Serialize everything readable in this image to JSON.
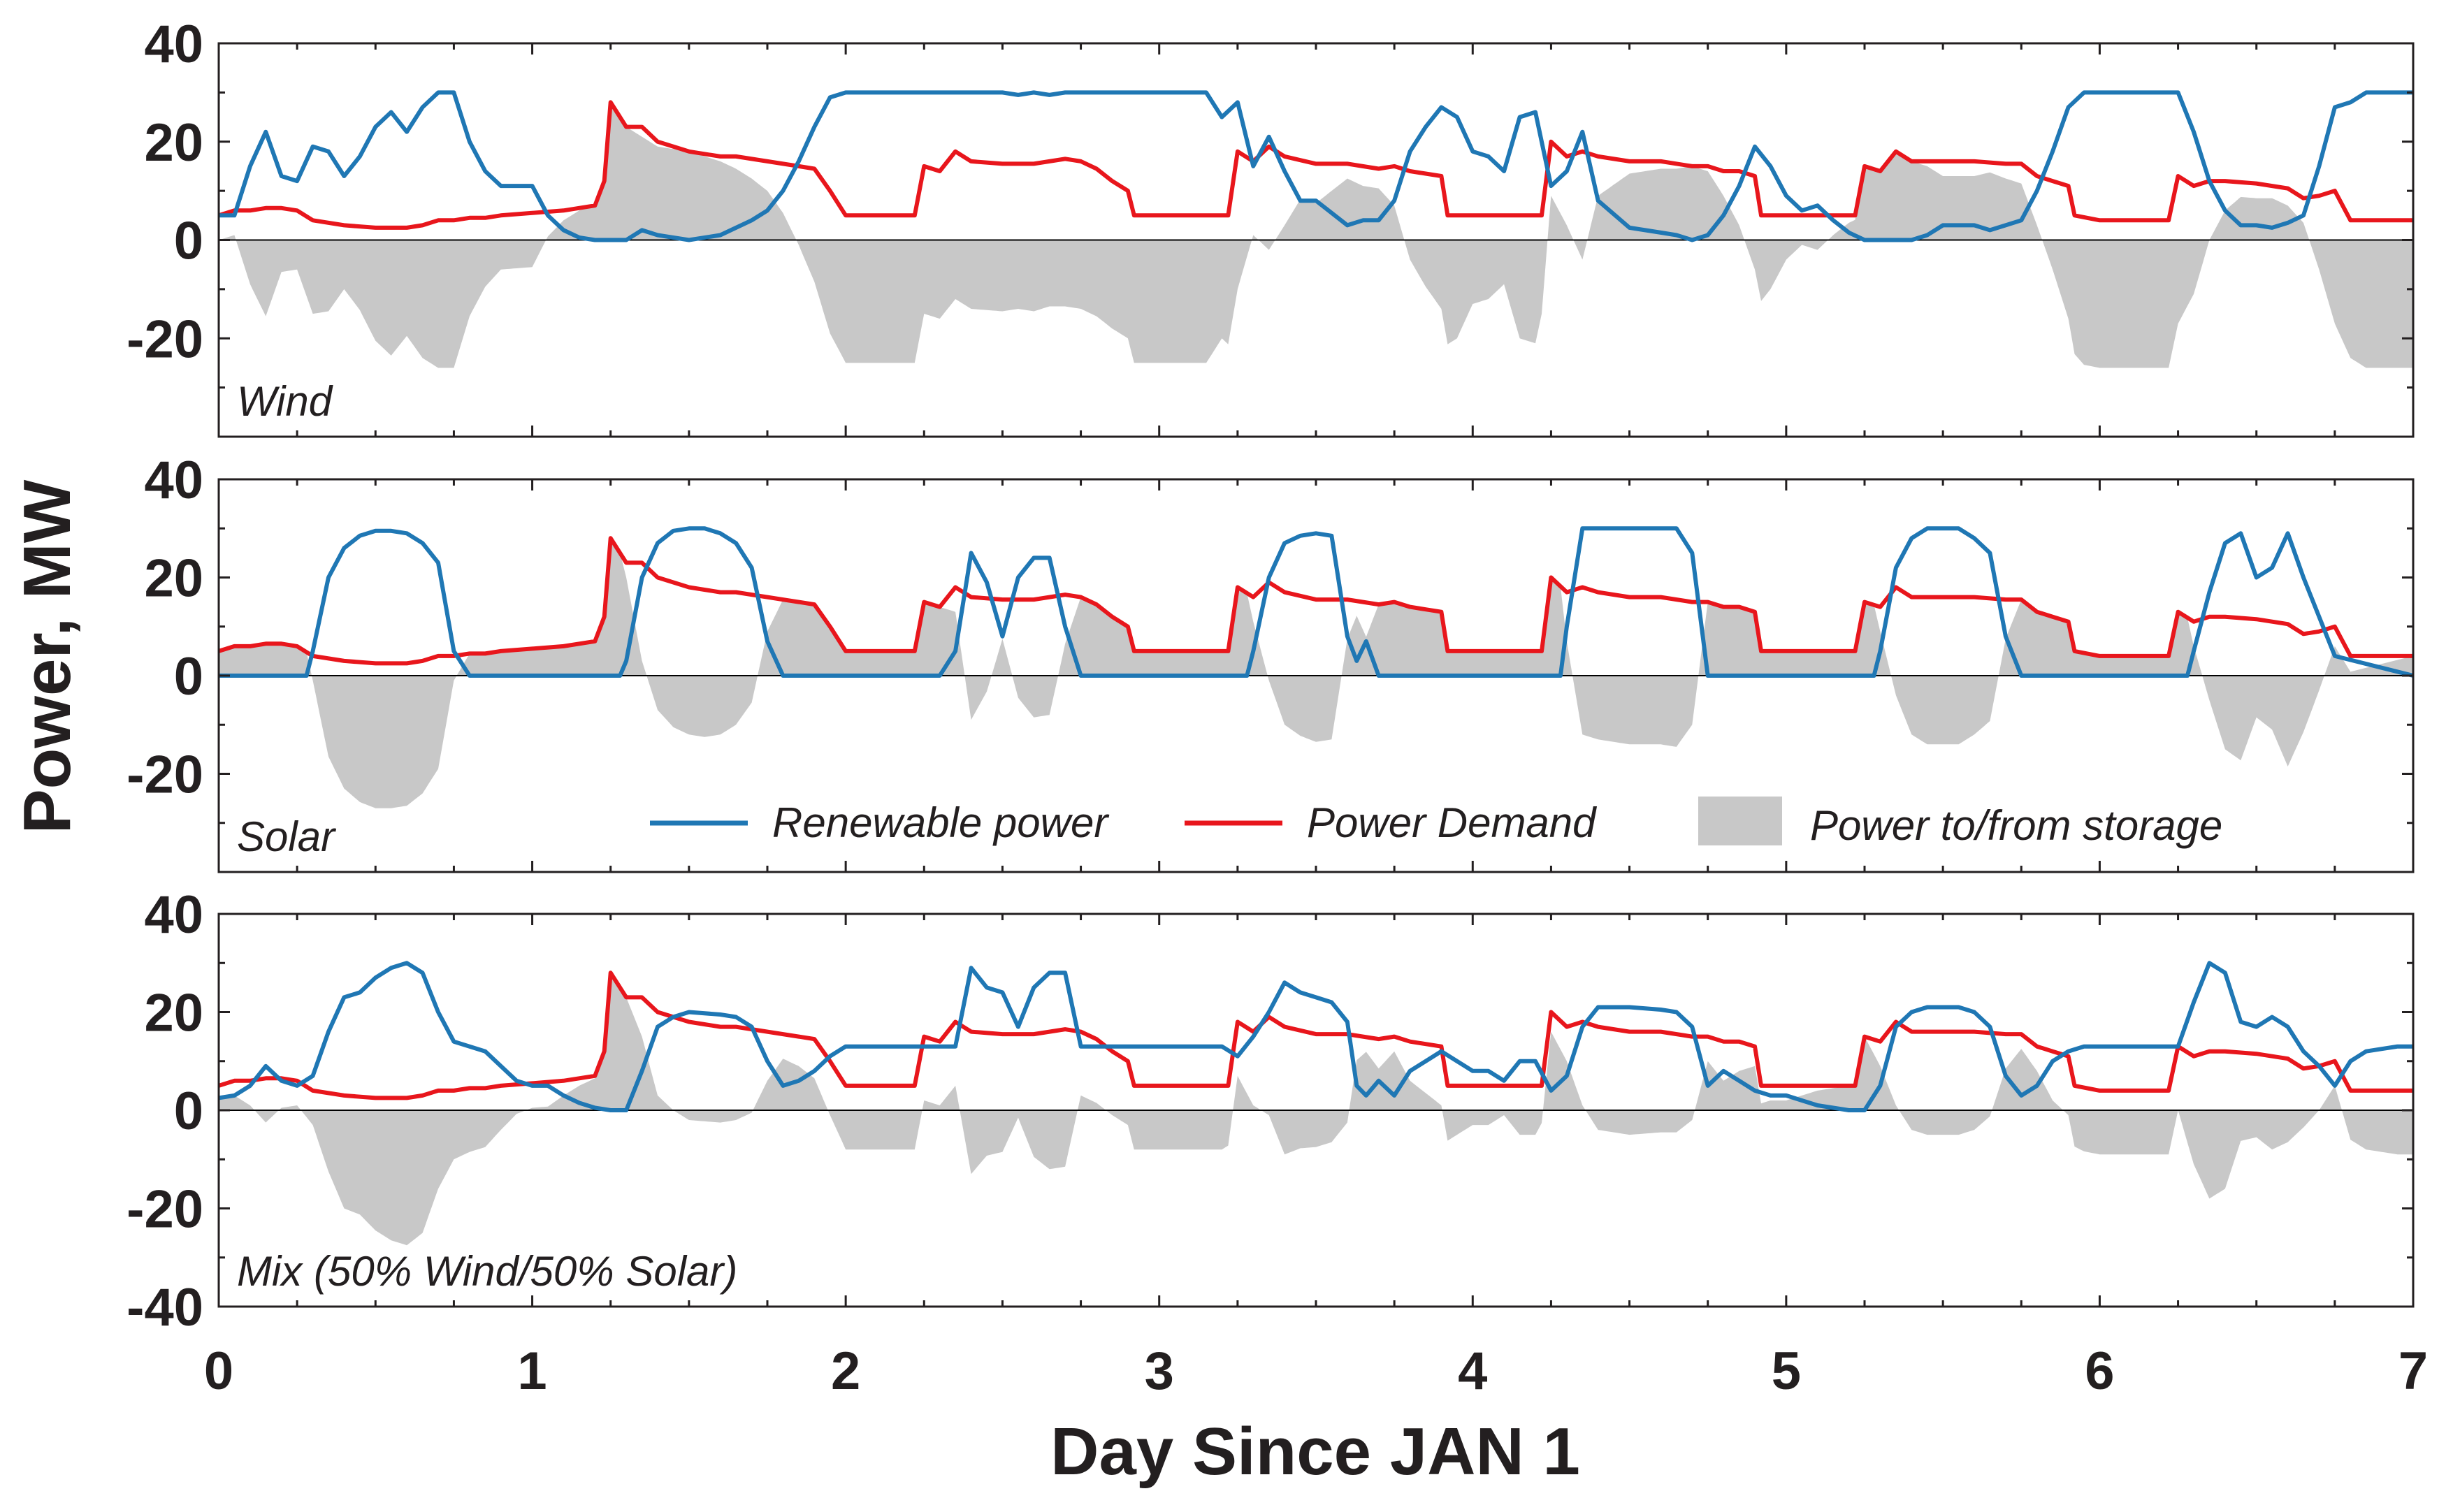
{
  "chart_data": {
    "type": "line",
    "xlabel": "Day Since JAN 1",
    "ylabel": "Power, MW",
    "xlim": [
      0,
      7
    ],
    "xticks": [
      0,
      1,
      2,
      3,
      4,
      5,
      6,
      7
    ],
    "legend": {
      "placement": "middle-panel-bottom",
      "entries": [
        {
          "name": "Renewable power",
          "kind": "line",
          "color": "#1f77b4"
        },
        {
          "name": "Power Demand",
          "kind": "line",
          "color": "#e8161c"
        },
        {
          "name": "Power to/from storage",
          "kind": "area",
          "color": "#c8c8c8"
        }
      ]
    },
    "demand": {
      "x": [
        0,
        0.05,
        0.1,
        0.15,
        0.2,
        0.25,
        0.3,
        0.4,
        0.5,
        0.6,
        0.65,
        0.7,
        0.75,
        0.8,
        0.85,
        0.9,
        1.0,
        1.1,
        1.2,
        1.23,
        1.25,
        1.3,
        1.35,
        1.4,
        1.5,
        1.6,
        1.65,
        1.7,
        1.75,
        1.8,
        1.85,
        1.9,
        1.95,
        2.0,
        2.1,
        2.2,
        2.22,
        2.25,
        2.3,
        2.35,
        2.4,
        2.5,
        2.6,
        2.7,
        2.75,
        2.8,
        2.85,
        2.9,
        2.92,
        3.0,
        3.1,
        3.2,
        3.22,
        3.25,
        3.3,
        3.35,
        3.4,
        3.5,
        3.6,
        3.7,
        3.75,
        3.8,
        3.85,
        3.9,
        3.92,
        4.0,
        4.1,
        4.2,
        4.22,
        4.25,
        4.3,
        4.35,
        4.4,
        4.5,
        4.6,
        4.7,
        4.75,
        4.8,
        4.85,
        4.9,
        4.92,
        5.0,
        5.1,
        5.2,
        5.22,
        5.25,
        5.3,
        5.35,
        5.4,
        5.5,
        5.6,
        5.7,
        5.75,
        5.8,
        5.85,
        5.9,
        5.92,
        6.0,
        6.1,
        6.2,
        6.22,
        6.25,
        6.3,
        6.35,
        6.4,
        6.5,
        6.6,
        6.65,
        6.7,
        6.75,
        6.8,
        6.85,
        6.9,
        6.95,
        7.0
      ],
      "y": [
        5,
        6,
        6,
        6.5,
        6.5,
        6,
        4,
        3,
        2.5,
        2.5,
        3,
        4,
        4,
        4.5,
        4.5,
        5,
        5.5,
        6,
        7,
        12,
        28,
        23,
        23,
        20,
        18,
        17,
        17,
        16.5,
        16,
        15.5,
        15,
        14.5,
        10,
        5,
        5,
        5,
        5,
        15,
        14,
        18,
        16,
        15.5,
        15.5,
        16.5,
        16,
        14.5,
        12,
        10,
        5,
        5,
        5,
        5,
        5,
        18,
        16,
        19,
        17,
        15.5,
        15.5,
        14.5,
        15,
        14,
        13.5,
        13,
        5,
        5,
        5,
        5,
        5,
        20,
        17,
        18,
        17,
        16,
        16,
        15,
        15,
        14,
        14,
        13,
        5,
        5,
        5,
        5,
        5,
        15,
        14,
        18,
        16,
        16,
        16,
        15.5,
        15.5,
        13,
        12,
        11,
        5,
        4,
        4,
        4,
        4,
        13,
        11,
        12,
        12,
        11.5,
        10.5,
        8.5,
        9,
        10,
        4,
        4,
        4,
        4,
        4
      ]
    },
    "panels": [
      {
        "label": "Wind",
        "ylim": [
          -40,
          40
        ],
        "yticks": [
          40,
          20,
          0,
          -20
        ],
        "renewable": {
          "x": [
            0,
            0.05,
            0.1,
            0.15,
            0.2,
            0.25,
            0.3,
            0.35,
            0.4,
            0.45,
            0.5,
            0.55,
            0.6,
            0.65,
            0.7,
            0.75,
            0.8,
            0.85,
            0.9,
            0.95,
            1.0,
            1.05,
            1.1,
            1.15,
            1.2,
            1.25,
            1.3,
            1.35,
            1.4,
            1.45,
            1.5,
            1.6,
            1.7,
            1.75,
            1.8,
            1.85,
            1.9,
            1.95,
            2.0,
            2.5,
            2.55,
            2.6,
            2.65,
            2.7,
            3.0,
            3.15,
            3.2,
            3.25,
            3.3,
            3.35,
            3.4,
            3.45,
            3.5,
            3.6,
            3.65,
            3.7,
            3.75,
            3.8,
            3.85,
            3.9,
            3.95,
            4.0,
            4.05,
            4.1,
            4.15,
            4.2,
            4.25,
            4.3,
            4.35,
            4.4,
            4.5,
            4.6,
            4.65,
            4.7,
            4.75,
            4.8,
            4.85,
            4.9,
            4.95,
            5.0,
            5.05,
            5.1,
            5.15,
            5.2,
            5.25,
            5.3,
            5.35,
            5.4,
            5.45,
            5.5,
            5.55,
            5.6,
            5.65,
            5.7,
            5.75,
            5.8,
            5.85,
            5.9,
            5.95,
            6.0,
            6.1,
            6.2,
            6.25,
            6.3,
            6.35,
            6.4,
            6.45,
            6.5,
            6.55,
            6.6,
            6.65,
            6.7,
            6.75,
            6.8,
            6.85,
            6.9,
            6.95,
            7.0
          ],
          "y": [
            5,
            5,
            15,
            22,
            13,
            12,
            19,
            18,
            13,
            17,
            23,
            26,
            22,
            27,
            30,
            30,
            20,
            14,
            11,
            11,
            11,
            5,
            2,
            0.5,
            0,
            0,
            0,
            2,
            1,
            0.5,
            0,
            1,
            4,
            6,
            10,
            16,
            23,
            29,
            30,
            30,
            29.5,
            30,
            29.5,
            30,
            30,
            30,
            25,
            28,
            15,
            21,
            14,
            8,
            8,
            3,
            4,
            4,
            8,
            18,
            23,
            27,
            25,
            18,
            17,
            14,
            25,
            26,
            11,
            14,
            22,
            8,
            2.5,
            1.5,
            1,
            0,
            1,
            5,
            11,
            19,
            15,
            9,
            6,
            7,
            4,
            1.5,
            0,
            0,
            0,
            0,
            1,
            3,
            3,
            3,
            2,
            3,
            4,
            10,
            18,
            27,
            30,
            30,
            30,
            30,
            30,
            22,
            12,
            6,
            3,
            3,
            2.5,
            3.5,
            5,
            15,
            27,
            28,
            30,
            30,
            30,
            30
          ]
        }
      },
      {
        "label": "Solar",
        "ylim": [
          -40,
          40
        ],
        "yticks": [
          40,
          20,
          0,
          -20
        ],
        "renewable": {
          "x": [
            0,
            0.28,
            0.3,
            0.35,
            0.4,
            0.45,
            0.5,
            0.55,
            0.6,
            0.65,
            0.7,
            0.75,
            0.8,
            1.28,
            1.3,
            1.35,
            1.4,
            1.45,
            1.5,
            1.55,
            1.6,
            1.65,
            1.7,
            1.75,
            1.8,
            2.28,
            2.3,
            2.35,
            2.4,
            2.45,
            2.5,
            2.55,
            2.6,
            2.65,
            2.7,
            2.75,
            2.8,
            3.28,
            3.3,
            3.35,
            3.4,
            3.45,
            3.5,
            3.55,
            3.6,
            3.63,
            3.66,
            3.7,
            3.75,
            4.28,
            4.3,
            4.35,
            4.4,
            4.5,
            4.6,
            4.65,
            4.7,
            4.75,
            5.28,
            5.3,
            5.35,
            5.4,
            5.45,
            5.5,
            5.55,
            5.6,
            5.65,
            5.7,
            5.75,
            6.28,
            6.3,
            6.35,
            6.4,
            6.45,
            6.5,
            6.55,
            6.6,
            6.65,
            6.7,
            6.75,
            7.0
          ],
          "y": [
            0,
            0,
            5,
            20,
            26,
            28.5,
            29.5,
            29.5,
            29,
            27,
            23,
            5,
            0,
            0,
            3,
            20,
            27,
            29.5,
            30,
            30,
            29,
            27,
            22,
            7,
            0,
            0,
            0,
            5,
            25,
            19,
            8,
            20,
            24,
            24,
            10,
            0,
            0,
            0,
            5,
            20,
            27,
            28.5,
            29,
            28.5,
            8,
            3,
            7,
            0,
            0,
            0,
            10,
            30,
            30,
            30,
            30,
            30,
            25,
            0,
            0,
            5,
            22,
            28,
            30,
            30,
            30,
            28,
            25,
            8,
            0,
            0,
            5,
            17,
            27,
            29,
            20,
            22,
            29,
            20,
            12,
            4,
            0
          ]
        }
      },
      {
        "label": "Mix (50% Wind/50% Solar)",
        "ylim": [
          -40,
          40
        ],
        "yticks": [
          40,
          20,
          0,
          -20,
          -40
        ],
        "renewable": {
          "x": [
            0,
            0.05,
            0.1,
            0.15,
            0.2,
            0.25,
            0.3,
            0.35,
            0.4,
            0.45,
            0.5,
            0.55,
            0.6,
            0.65,
            0.7,
            0.75,
            0.8,
            0.85,
            0.9,
            0.95,
            1.0,
            1.05,
            1.1,
            1.15,
            1.2,
            1.25,
            1.3,
            1.35,
            1.4,
            1.45,
            1.5,
            1.6,
            1.65,
            1.7,
            1.75,
            1.8,
            1.85,
            1.9,
            1.95,
            2.0,
            2.1,
            2.2,
            2.25,
            2.3,
            2.35,
            2.4,
            2.45,
            2.5,
            2.55,
            2.6,
            2.65,
            2.7,
            2.75,
            2.8,
            2.85,
            2.9,
            3.0,
            3.1,
            3.2,
            3.25,
            3.3,
            3.35,
            3.4,
            3.45,
            3.5,
            3.55,
            3.6,
            3.63,
            3.66,
            3.7,
            3.75,
            3.8,
            3.85,
            3.9,
            3.95,
            4.0,
            4.05,
            4.1,
            4.15,
            4.2,
            4.25,
            4.3,
            4.35,
            4.4,
            4.5,
            4.6,
            4.65,
            4.7,
            4.75,
            4.8,
            4.85,
            4.9,
            4.95,
            5.0,
            5.05,
            5.1,
            5.15,
            5.2,
            5.25,
            5.3,
            5.35,
            5.4,
            5.45,
            5.5,
            5.55,
            5.6,
            5.65,
            5.7,
            5.75,
            5.8,
            5.85,
            5.9,
            5.95,
            6.0,
            6.1,
            6.2,
            6.25,
            6.3,
            6.35,
            6.4,
            6.45,
            6.5,
            6.55,
            6.6,
            6.65,
            6.7,
            6.75,
            6.8,
            6.85,
            6.9,
            6.95,
            7.0
          ],
          "y": [
            2.5,
            3,
            5,
            9,
            6,
            5,
            7,
            16,
            23,
            24,
            27,
            29,
            30,
            28,
            20,
            14,
            13,
            12,
            9,
            6,
            5,
            5,
            3,
            1.5,
            0.5,
            0,
            0,
            8,
            17,
            19,
            20,
            19.5,
            19,
            17,
            10,
            5,
            6,
            8,
            11,
            13,
            13,
            13,
            13,
            13,
            13,
            29,
            25,
            24,
            17,
            25,
            28,
            28,
            13,
            13,
            13,
            13,
            13,
            13,
            13,
            11,
            15,
            20,
            26,
            24,
            23,
            22,
            18,
            5,
            3,
            6,
            3,
            8,
            10,
            12,
            10,
            8,
            8,
            6,
            10,
            10,
            4,
            7,
            17,
            21,
            21,
            20.5,
            20,
            17,
            5,
            8,
            6,
            4,
            3,
            3,
            2,
            1,
            0.5,
            0,
            0,
            5,
            17,
            20,
            21,
            21,
            21,
            20,
            17,
            7,
            3,
            5,
            10,
            12,
            13,
            13,
            13,
            13,
            13,
            22,
            30,
            28,
            18,
            17,
            19,
            17,
            12,
            9,
            5,
            10,
            12,
            12.5,
            13,
            13
          ]
        }
      }
    ]
  }
}
